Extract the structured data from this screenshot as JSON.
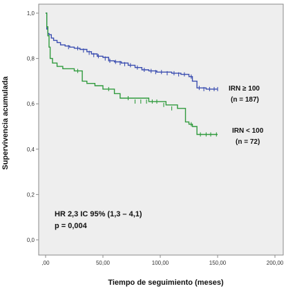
{
  "chart_data": {
    "type": "line",
    "subtype": "kaplan-meier",
    "title": "",
    "xlabel": "Tiempo de seguimiento (meses)",
    "ylabel": "Supervivencia acumulada",
    "xlim": [
      0,
      200
    ],
    "ylim": [
      0,
      1
    ],
    "x_ticks": [
      0,
      50,
      100,
      150,
      200
    ],
    "x_tick_labels": [
      ",00",
      "50,00",
      "100,00",
      "150,00",
      "200,00"
    ],
    "y_ticks": [
      0,
      0.2,
      0.4,
      0.6,
      0.8,
      1.0
    ],
    "y_tick_labels": [
      "0,0",
      "0,2",
      "0,4",
      "0,6",
      "0,8",
      "1,0"
    ],
    "grid": false,
    "plot_background": "#eeeeee",
    "series": [
      {
        "name": "IRN ≥ 100",
        "count_label": "(n = 187)",
        "color": "#3a4db0",
        "x": [
          0,
          1,
          2,
          3,
          5,
          7,
          10,
          13,
          17,
          21,
          25,
          30,
          36,
          40,
          45,
          50,
          55,
          60,
          66,
          72,
          78,
          84,
          90,
          97,
          103,
          110,
          118,
          125,
          128,
          132,
          140,
          150
        ],
        "y": [
          1.0,
          0.93,
          0.91,
          0.905,
          0.89,
          0.88,
          0.87,
          0.86,
          0.855,
          0.85,
          0.845,
          0.84,
          0.83,
          0.82,
          0.81,
          0.805,
          0.79,
          0.785,
          0.78,
          0.77,
          0.76,
          0.75,
          0.745,
          0.74,
          0.74,
          0.735,
          0.73,
          0.72,
          0.7,
          0.67,
          0.665,
          0.665
        ],
        "censored_x": [
          20,
          28,
          33,
          38,
          42,
          46,
          52,
          56,
          61,
          65,
          69,
          74,
          80,
          86,
          92,
          96,
          101,
          106,
          112,
          116,
          121,
          127,
          134,
          138,
          143,
          147,
          150
        ],
        "censored_y": [
          0.85,
          0.845,
          0.835,
          0.825,
          0.815,
          0.81,
          0.8,
          0.79,
          0.785,
          0.78,
          0.775,
          0.77,
          0.76,
          0.75,
          0.745,
          0.74,
          0.74,
          0.735,
          0.735,
          0.73,
          0.73,
          0.72,
          0.67,
          0.665,
          0.665,
          0.665,
          0.665
        ]
      },
      {
        "name": "IRN < 100",
        "count_label": "(n = 72)",
        "color": "#2f9a3c",
        "x": [
          0,
          1,
          2,
          3,
          4,
          6,
          10,
          15,
          25,
          32,
          36,
          43,
          50,
          60,
          65,
          70,
          90,
          100,
          105,
          115,
          122,
          125,
          128,
          132,
          150
        ],
        "y": [
          1.0,
          0.94,
          0.9,
          0.85,
          0.8,
          0.78,
          0.765,
          0.755,
          0.745,
          0.7,
          0.69,
          0.68,
          0.665,
          0.645,
          0.625,
          0.625,
          0.61,
          0.61,
          0.595,
          0.58,
          0.52,
          0.51,
          0.5,
          0.465,
          0.465
        ],
        "censored_x": [
          28,
          55,
          72,
          78,
          83,
          88,
          93,
          97,
          103,
          110,
          127,
          135,
          140,
          144,
          149
        ],
        "censored_y": [
          0.745,
          0.665,
          0.625,
          0.61,
          0.61,
          0.61,
          0.61,
          0.61,
          0.595,
          0.58,
          0.51,
          0.465,
          0.465,
          0.465,
          0.465
        ]
      }
    ],
    "annotations": [
      "HR 2,3 IC 95% (1,3 – 4,1)",
      "p = 0,004"
    ]
  }
}
